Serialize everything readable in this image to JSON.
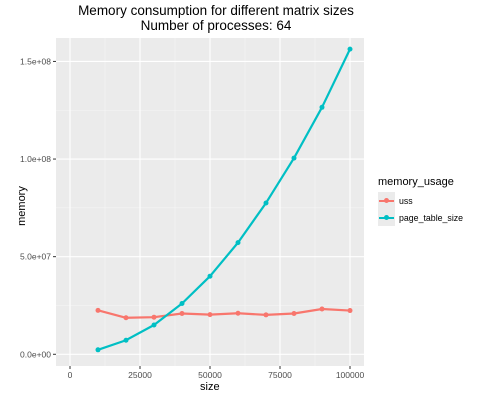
{
  "chart_data": {
    "type": "line",
    "title": "Memory consumption for different matrix sizes",
    "subtitle": "Number of processes: 64",
    "xlabel": "size",
    "ylabel": "memory",
    "xlim": [
      -5000,
      105000
    ],
    "ylim": [
      -6000000,
      162000000
    ],
    "x_ticks": [
      0,
      25000,
      50000,
      75000,
      100000
    ],
    "x_tick_labels": [
      "0",
      "25000",
      "50000",
      "75000",
      "100000"
    ],
    "y_ticks": [
      0,
      50000000,
      100000000,
      150000000
    ],
    "y_tick_labels": [
      "0.0e+00",
      "5.0e+07",
      "1.0e+08",
      "1.5e+08"
    ],
    "grid": true,
    "legend_title": "memory_usage",
    "legend_position": "right",
    "x": [
      10000,
      20000,
      30000,
      40000,
      50000,
      60000,
      70000,
      80000,
      90000,
      100000
    ],
    "series": [
      {
        "name": "uss",
        "color": "#F8766D",
        "values": [
          22500000,
          18700000,
          19000000,
          20900000,
          20300000,
          21000000,
          20200000,
          20900000,
          23200000,
          22400000
        ]
      },
      {
        "name": "page_table_size",
        "color": "#00BFC4",
        "values": [
          2300000,
          7200000,
          15000000,
          26000000,
          40000000,
          57200000,
          77500000,
          100500000,
          126500000,
          156300000
        ]
      }
    ]
  }
}
